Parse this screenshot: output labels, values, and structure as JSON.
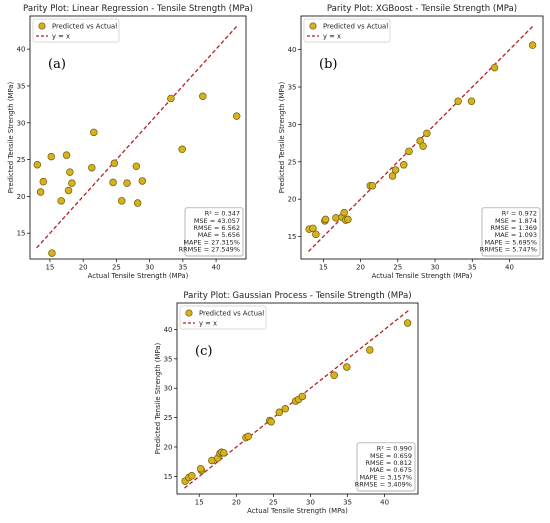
{
  "colors": {
    "marker_fill": "#d6b21c",
    "marker_edge": "#6f5a08",
    "ref_line": "#b22222",
    "axis": "#000000"
  },
  "legend": {
    "markers": "Predicted vs Actual",
    "line": "y = x"
  },
  "chart_data": [
    {
      "type": "scatter",
      "title": "Parity Plot: Linear Regression - Tensile Strength (MPa)",
      "panel_label": "(a)",
      "xlabel": "Actual Tensile Strength (MPa)",
      "ylabel": "Predicted Tensile Strength (MPa)",
      "xlim": [
        12.0,
        44.5
      ],
      "ylim": [
        11.5,
        44.5
      ],
      "xticks": [
        15,
        20,
        25,
        30,
        35,
        40
      ],
      "yticks": [
        15,
        20,
        25,
        30,
        35,
        40
      ],
      "grid": false,
      "legend_position": "top-left",
      "reference_line": "y = x",
      "stats": [
        "R² = 0.347",
        "MSE = 43.057",
        "RMSE = 6.562",
        "MAE = 5.656",
        "MAPE = 27.315%",
        "RRMSE = 27.549%"
      ],
      "points": [
        [
          13.1,
          24.3
        ],
        [
          13.6,
          20.6
        ],
        [
          14.0,
          22.0
        ],
        [
          15.3,
          12.3
        ],
        [
          15.2,
          25.4
        ],
        [
          16.7,
          19.4
        ],
        [
          17.5,
          25.6
        ],
        [
          17.8,
          20.8
        ],
        [
          18.0,
          23.3
        ],
        [
          18.3,
          21.8
        ],
        [
          21.3,
          23.9
        ],
        [
          21.6,
          28.7
        ],
        [
          24.5,
          21.9
        ],
        [
          24.7,
          24.5
        ],
        [
          25.8,
          19.4
        ],
        [
          26.6,
          21.8
        ],
        [
          28.0,
          24.1
        ],
        [
          28.2,
          19.1
        ],
        [
          28.9,
          22.1
        ],
        [
          33.2,
          33.3
        ],
        [
          34.9,
          26.4
        ],
        [
          38.0,
          33.6
        ],
        [
          43.1,
          30.9
        ]
      ]
    },
    {
      "type": "scatter",
      "title": "Parity Plot: XGBoost - Tensile Strength (MPa)",
      "panel_label": "(b)",
      "xlabel": "Actual Tensile Strength (MPa)",
      "ylabel": "Predicted Tensile Strength (MPa)",
      "xlim": [
        12.0,
        44.5
      ],
      "ylim": [
        12.0,
        44.5
      ],
      "xticks": [
        15,
        20,
        25,
        30,
        35,
        40
      ],
      "yticks": [
        15,
        20,
        25,
        30,
        35,
        40
      ],
      "grid": false,
      "legend_position": "top-left",
      "reference_line": "y = x",
      "stats": [
        "R² = 0.972",
        "MSE = 1.874",
        "RMSE = 1.369",
        "MAE = 1.093",
        "MAPE = 5.695%",
        "RRMSE = 5.747%"
      ],
      "points": [
        [
          13.1,
          16.0
        ],
        [
          13.6,
          16.1
        ],
        [
          14.0,
          15.3
        ],
        [
          15.2,
          17.1
        ],
        [
          15.3,
          17.3
        ],
        [
          16.7,
          17.5
        ],
        [
          17.5,
          17.6
        ],
        [
          17.8,
          18.2
        ],
        [
          18.0,
          17.2
        ],
        [
          18.3,
          17.3
        ],
        [
          21.3,
          21.8
        ],
        [
          21.6,
          21.8
        ],
        [
          24.3,
          23.1
        ],
        [
          24.7,
          23.9
        ],
        [
          25.8,
          24.6
        ],
        [
          26.5,
          26.4
        ],
        [
          28.0,
          27.8
        ],
        [
          28.4,
          27.1
        ],
        [
          28.9,
          28.8
        ],
        [
          33.1,
          33.1
        ],
        [
          34.9,
          33.1
        ],
        [
          38.0,
          37.6
        ],
        [
          43.1,
          40.6
        ]
      ]
    },
    {
      "type": "scatter",
      "title": "Parity Plot: Gaussian Process - Tensile Strength (MPa)",
      "panel_label": "(c)",
      "xlabel": "Actual Tensile Strength (MPa)",
      "ylabel": "Predicted Tensile Strength (MPa)",
      "xlim": [
        12.0,
        44.5
      ],
      "ylim": [
        12.0,
        44.5
      ],
      "xticks": [
        15,
        20,
        25,
        30,
        35,
        40
      ],
      "yticks": [
        15,
        20,
        25,
        30,
        35,
        40
      ],
      "grid": false,
      "legend_position": "top-left",
      "reference_line": "y = x",
      "stats": [
        "R² = 0.990",
        "MSE = 0.659",
        "RMSE = 0.812",
        "MAE = 0.675",
        "MAPE = 3.157%",
        "RRMSE = 3.409%"
      ],
      "points": [
        [
          13.1,
          14.2
        ],
        [
          13.6,
          14.8
        ],
        [
          14.0,
          15.1
        ],
        [
          15.3,
          16.0
        ],
        [
          15.2,
          16.3
        ],
        [
          16.7,
          17.7
        ],
        [
          17.5,
          18.1
        ],
        [
          17.8,
          18.9
        ],
        [
          18.0,
          19.1
        ],
        [
          18.3,
          19.0
        ],
        [
          21.3,
          21.6
        ],
        [
          21.6,
          21.8
        ],
        [
          24.5,
          24.5
        ],
        [
          24.7,
          24.3
        ],
        [
          25.8,
          25.9
        ],
        [
          26.6,
          26.5
        ],
        [
          28.0,
          27.8
        ],
        [
          28.4,
          28.1
        ],
        [
          28.9,
          28.6
        ],
        [
          33.2,
          32.2
        ],
        [
          34.9,
          33.6
        ],
        [
          38.0,
          36.5
        ],
        [
          43.1,
          41.1
        ]
      ]
    }
  ]
}
